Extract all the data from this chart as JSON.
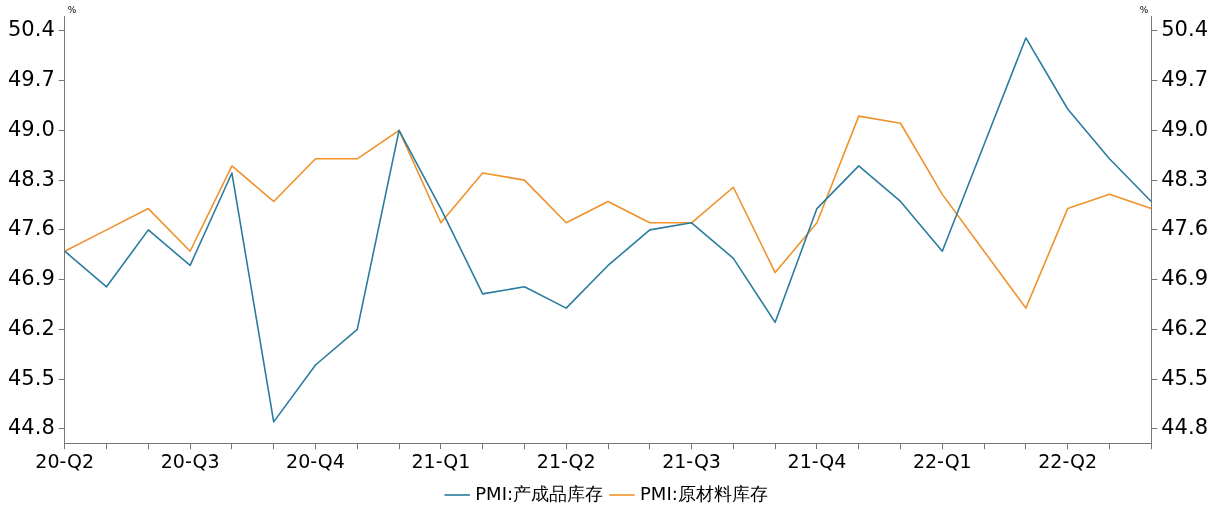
{
  "chart_data": {
    "type": "line",
    "categories": [
      "20-Q2",
      null,
      null,
      "20-Q3",
      null,
      null,
      "20-Q4",
      null,
      null,
      "21-Q1",
      null,
      null,
      "21-Q2",
      null,
      null,
      "21-Q3",
      null,
      null,
      "21-Q4",
      null,
      null,
      "22-Q1",
      null,
      null,
      "22-Q2",
      null,
      null
    ],
    "series": [
      {
        "name": "PMI:产成品库存",
        "color": "#2b7c9e",
        "values": [
          47.3,
          46.8,
          47.6,
          47.1,
          48.4,
          44.9,
          45.7,
          46.2,
          49.0,
          47.9,
          46.7,
          46.8,
          46.5,
          47.1,
          47.6,
          47.7,
          47.2,
          46.3,
          47.9,
          48.5,
          48.0,
          47.3,
          48.8,
          50.3,
          49.3,
          48.6,
          48.0
        ]
      },
      {
        "name": "PMI:原材料库存",
        "color": "#f0922b",
        "values": [
          47.3,
          47.6,
          47.9,
          47.3,
          48.5,
          48.0,
          48.6,
          48.6,
          49.0,
          47.7,
          48.4,
          48.3,
          47.7,
          48.0,
          47.7,
          47.7,
          48.2,
          47.0,
          47.7,
          49.2,
          49.1,
          48.1,
          47.3,
          46.5,
          47.9,
          48.1,
          47.9
        ]
      }
    ],
    "ylabel": "%",
    "y2label": "%",
    "ylim": [
      44.6,
      50.6
    ],
    "yticks": [
      44.8,
      45.5,
      46.2,
      46.9,
      47.6,
      48.3,
      {
        "value": 49,
        "label": "49.0"
      },
      49.7,
      50.4
    ],
    "y2lim": [
      44.6,
      50.6
    ],
    "y2ticks": [
      44.8,
      45.5,
      46.2,
      46.9,
      47.6,
      48.3,
      {
        "value": 49,
        "label": "49.0"
      },
      49.7,
      50.4
    ],
    "grid": false,
    "legend": "bottom",
    "marker": "none",
    "line_style": "solid"
  }
}
